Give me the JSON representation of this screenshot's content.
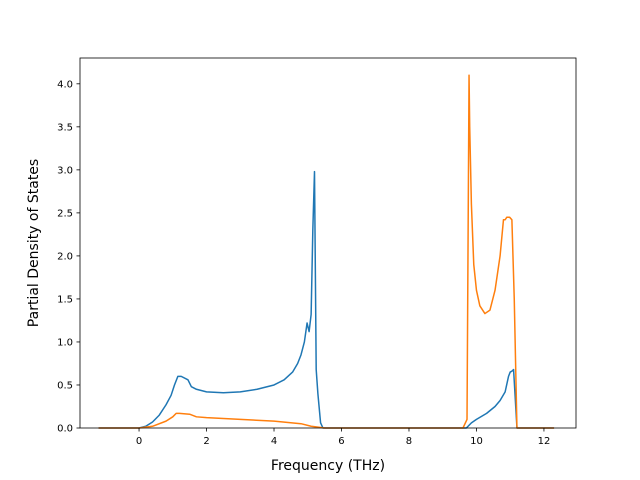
{
  "chart_data": {
    "type": "line",
    "title": "",
    "xlabel": "Frequency (THz)",
    "ylabel": "Partial Density of States",
    "xlim": [
      -1.75,
      12.95
    ],
    "ylim": [
      0.0,
      4.3
    ],
    "xticks": [
      0,
      2,
      4,
      6,
      8,
      10,
      12
    ],
    "xtick_labels": [
      "0",
      "2",
      "4",
      "6",
      "8",
      "10",
      "12"
    ],
    "yticks": [
      0.0,
      0.5,
      1.0,
      1.5,
      2.0,
      2.5,
      3.0,
      3.5,
      4.0
    ],
    "ytick_labels": [
      "0.0",
      "0.5",
      "1.0",
      "1.5",
      "2.0",
      "2.5",
      "3.0",
      "3.5",
      "4.0"
    ],
    "grid": false,
    "series": [
      {
        "color": "#1f77b4",
        "x": [
          -1.2,
          0.0,
          0.2,
          0.4,
          0.6,
          0.8,
          0.95,
          1.05,
          1.15,
          1.25,
          1.45,
          1.55,
          1.7,
          2.0,
          2.5,
          3.0,
          3.5,
          4.0,
          4.3,
          4.55,
          4.7,
          4.8,
          4.9,
          4.98,
          5.04,
          5.1,
          5.15,
          5.2,
          5.25,
          5.3,
          5.38,
          5.45,
          6.0,
          9.7,
          9.85,
          10.0,
          10.3,
          10.55,
          10.7,
          10.85,
          10.95,
          11.0,
          11.05,
          11.1,
          11.2,
          12.3
        ],
        "y": [
          0.0,
          0.0,
          0.02,
          0.07,
          0.15,
          0.27,
          0.38,
          0.5,
          0.6,
          0.6,
          0.56,
          0.48,
          0.45,
          0.42,
          0.41,
          0.42,
          0.45,
          0.5,
          0.56,
          0.65,
          0.75,
          0.85,
          1.0,
          1.22,
          1.12,
          1.32,
          2.3,
          2.98,
          0.68,
          0.4,
          0.06,
          0.0,
          0.0,
          0.0,
          0.06,
          0.1,
          0.17,
          0.25,
          0.32,
          0.42,
          0.6,
          0.65,
          0.66,
          0.68,
          0.0,
          0.0
        ]
      },
      {
        "color": "#ff7f0e",
        "x": [
          -1.2,
          0.0,
          0.4,
          0.8,
          1.0,
          1.1,
          1.2,
          1.5,
          1.7,
          2.0,
          3.0,
          4.0,
          4.8,
          5.1,
          5.3,
          5.5,
          6.0,
          9.6,
          9.72,
          9.78,
          9.8,
          9.85,
          9.92,
          10.0,
          10.1,
          10.25,
          10.4,
          10.55,
          10.7,
          10.8,
          10.85,
          10.9,
          10.98,
          11.05,
          11.12,
          11.2,
          12.3
        ],
        "y": [
          0.0,
          0.0,
          0.02,
          0.08,
          0.13,
          0.17,
          0.17,
          0.16,
          0.13,
          0.12,
          0.1,
          0.08,
          0.05,
          0.02,
          0.01,
          0.0,
          0.0,
          0.0,
          0.1,
          4.1,
          3.5,
          2.6,
          1.9,
          1.6,
          1.42,
          1.33,
          1.37,
          1.6,
          2.0,
          2.42,
          2.42,
          2.45,
          2.45,
          2.42,
          1.5,
          0.0,
          0.0
        ]
      }
    ]
  }
}
